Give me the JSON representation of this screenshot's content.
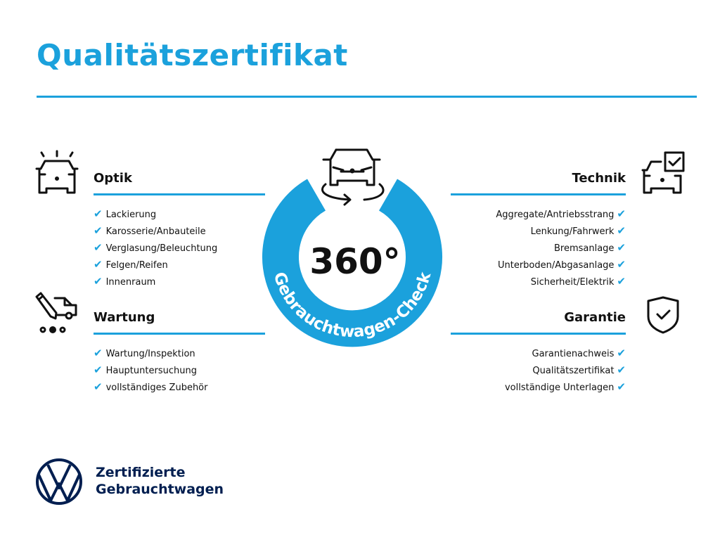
{
  "title": "Qualitätszertifikat",
  "center": {
    "big_label": "360°",
    "ring_label": "Gebrauchtwagen-Check",
    "icon": "car-rotate-icon"
  },
  "sections": {
    "optik": {
      "heading": "Optik",
      "icon": "car-lights-icon",
      "items": [
        "Lackierung",
        "Karosserie/Anbauteile",
        "Verglasung/Beleuchtung",
        "Felgen/Reifen",
        "Innenraum"
      ]
    },
    "wartung": {
      "heading": "Wartung",
      "icon": "service-car-pen-icon",
      "items": [
        "Wartung/Inspektion",
        "Hauptuntersuchung",
        "vollständiges Zubehör"
      ]
    },
    "technik": {
      "heading": "Technik",
      "icon": "car-checkbox-icon",
      "items": [
        "Aggregate/Antriebsstrang",
        "Lenkung/Fahrwerk",
        "Bremsanlage",
        "Unterboden/Abgasanlage",
        "Sicherheit/Elektrik"
      ]
    },
    "garantie": {
      "heading": "Garantie",
      "icon": "shield-check-icon",
      "items": [
        "Garantienachweis",
        "Qualitätszertifikat",
        "vollständige Unterlagen"
      ]
    }
  },
  "check_glyph": "✔",
  "footer": {
    "line1": "Zertifizierte",
    "line2": "Gebrauchtwagen",
    "logo": "vw-logo"
  },
  "colors": {
    "accent": "#1ba1dc",
    "brand": "#001e50",
    "text": "#111111"
  }
}
